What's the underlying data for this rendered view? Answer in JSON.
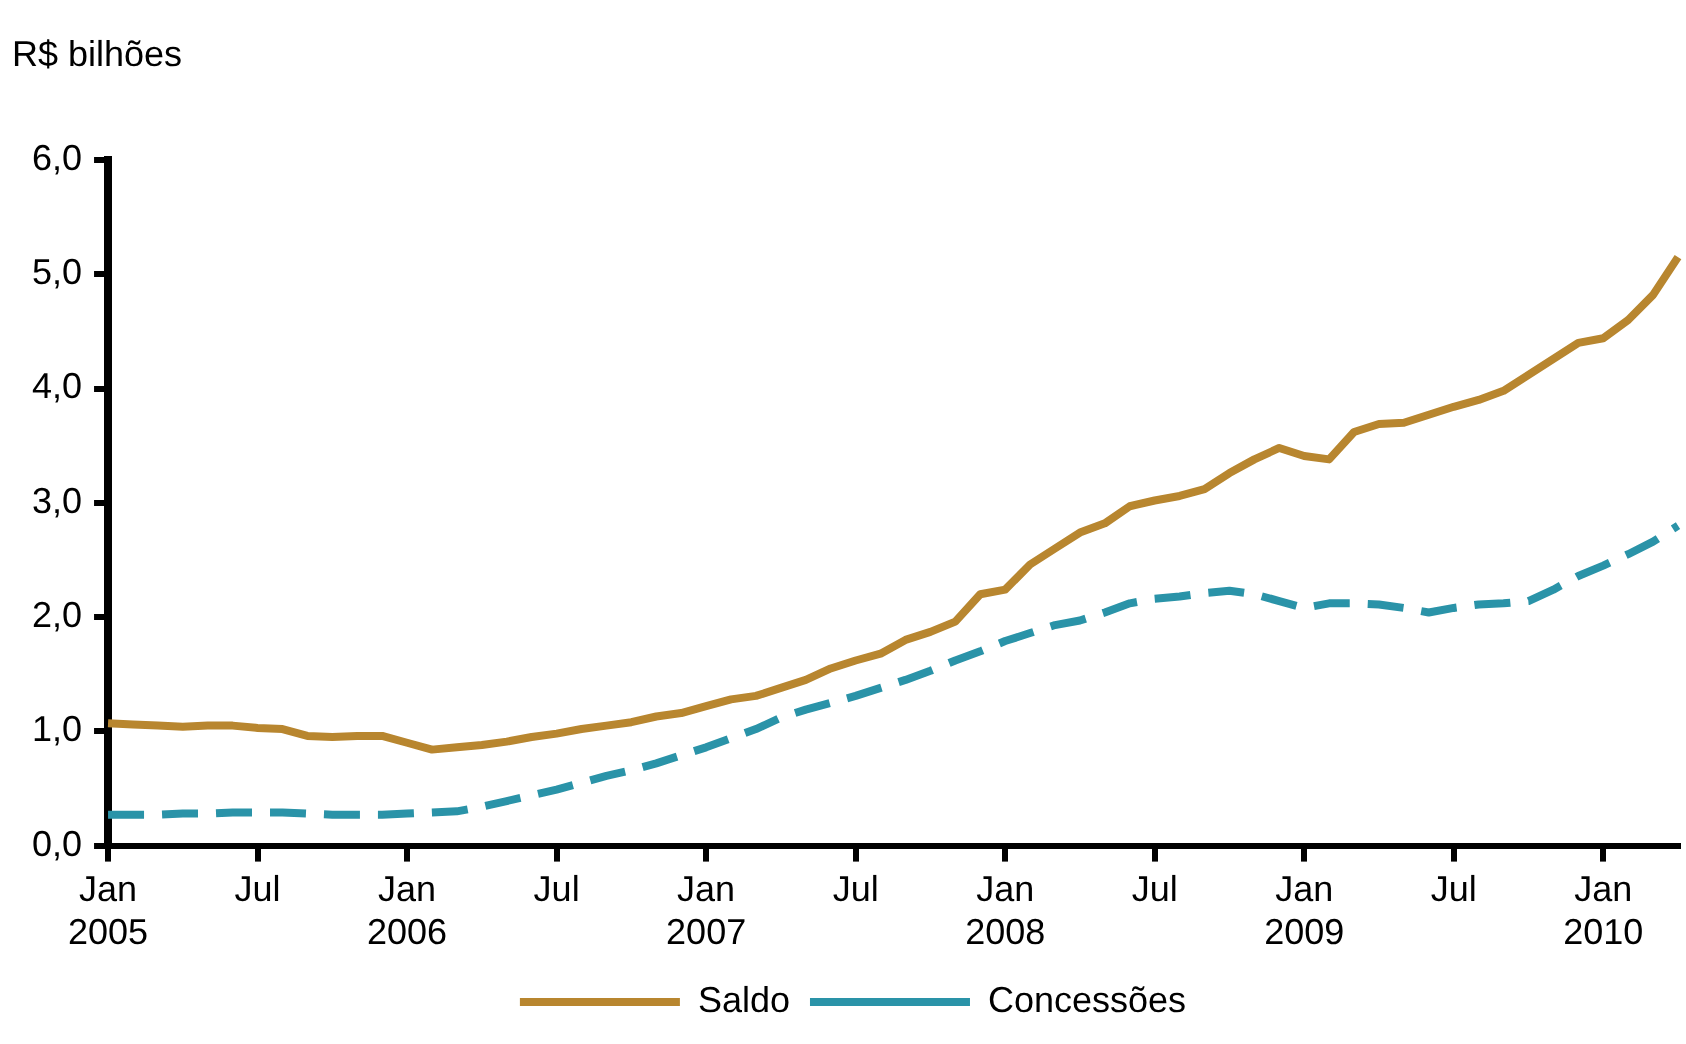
{
  "chart_data": {
    "type": "line",
    "ylabel": "R$ bilhões",
    "categories": [
      "Jan\n2005",
      null,
      null,
      null,
      null,
      null,
      "Jul",
      null,
      null,
      null,
      null,
      null,
      "Jan\n2006",
      null,
      null,
      null,
      null,
      null,
      "Jul",
      null,
      null,
      null,
      null,
      null,
      "Jan\n2007",
      null,
      null,
      null,
      null,
      null,
      "Jul",
      null,
      null,
      null,
      null,
      null,
      "Jan\n2008",
      null,
      null,
      null,
      null,
      null,
      "Jul",
      null,
      null,
      null,
      null,
      null,
      "Jan\n2009",
      null,
      null,
      null,
      null,
      null,
      "Jul",
      null,
      null,
      null,
      null,
      null,
      "Jan\n2010",
      null,
      null,
      null
    ],
    "series": [
      {
        "name": "Saldo",
        "color": "#b8862f",
        "line_style": "solid",
        "values": [
          1.07,
          1.06,
          1.05,
          1.04,
          1.05,
          1.05,
          1.03,
          1.02,
          0.96,
          0.95,
          0.96,
          0.96,
          0.9,
          0.84,
          0.86,
          0.88,
          0.91,
          0.95,
          0.98,
          1.02,
          1.05,
          1.08,
          1.13,
          1.16,
          1.22,
          1.28,
          1.31,
          1.38,
          1.45,
          1.55,
          1.62,
          1.68,
          1.8,
          1.87,
          1.96,
          2.2,
          2.24,
          2.46,
          2.6,
          2.74,
          2.82,
          2.97,
          3.02,
          3.06,
          3.12,
          3.26,
          3.38,
          3.48,
          3.41,
          3.38,
          3.62,
          3.69,
          3.7,
          3.77,
          3.84,
          3.9,
          3.98,
          4.12,
          4.26,
          4.4,
          4.44,
          4.6,
          4.82,
          5.15
        ]
      },
      {
        "name": "Concessões",
        "color": "#2a93a8",
        "line_style": "dashed",
        "values": [
          0.27,
          0.27,
          0.27,
          0.28,
          0.28,
          0.29,
          0.29,
          0.29,
          0.28,
          0.27,
          0.27,
          0.27,
          0.28,
          0.29,
          0.3,
          0.34,
          0.39,
          0.44,
          0.49,
          0.55,
          0.61,
          0.66,
          0.72,
          0.79,
          0.86,
          0.94,
          1.02,
          1.12,
          1.19,
          1.25,
          1.31,
          1.38,
          1.45,
          1.53,
          1.62,
          1.7,
          1.79,
          1.86,
          1.93,
          1.97,
          2.04,
          2.12,
          2.16,
          2.18,
          2.21,
          2.23,
          2.2,
          2.14,
          2.08,
          2.12,
          2.12,
          2.11,
          2.08,
          2.04,
          2.08,
          2.11,
          2.12,
          2.14,
          2.24,
          2.36,
          2.45,
          2.55,
          2.66,
          2.8
        ]
      }
    ],
    "ylim": [
      0,
      6
    ],
    "yticks": [
      {
        "value": 0,
        "label": "0,0"
      },
      {
        "value": 1,
        "label": "1,0"
      },
      {
        "value": 2,
        "label": "2,0"
      },
      {
        "value": 3,
        "label": "3,0"
      },
      {
        "value": 4,
        "label": "4,0"
      },
      {
        "value": 5,
        "label": "5,0"
      },
      {
        "value": 6,
        "label": "6,0"
      }
    ],
    "grid": false,
    "legend": "bottom"
  }
}
